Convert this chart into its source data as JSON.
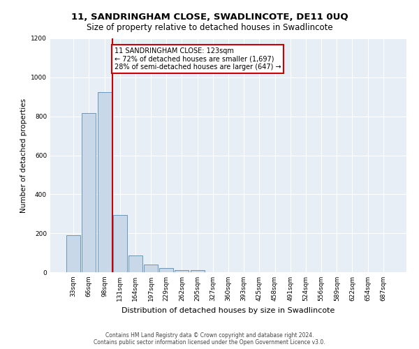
{
  "title": "11, SANDRINGHAM CLOSE, SWADLINCOTE, DE11 0UQ",
  "subtitle": "Size of property relative to detached houses in Swadlincote",
  "xlabel": "Distribution of detached houses by size in Swadlincote",
  "ylabel": "Number of detached properties",
  "bar_labels": [
    "33sqm",
    "66sqm",
    "98sqm",
    "131sqm",
    "164sqm",
    "197sqm",
    "229sqm",
    "262sqm",
    "295sqm",
    "327sqm",
    "360sqm",
    "393sqm",
    "425sqm",
    "458sqm",
    "491sqm",
    "524sqm",
    "556sqm",
    "589sqm",
    "622sqm",
    "654sqm",
    "687sqm"
  ],
  "bar_values": [
    190,
    815,
    925,
    295,
    85,
    38,
    22,
    12,
    10,
    0,
    0,
    0,
    0,
    0,
    0,
    0,
    0,
    0,
    0,
    0,
    0
  ],
  "bar_color": "#c8d8e8",
  "bar_edge_color": "#5a8ab0",
  "vline_label": "11 SANDRINGHAM CLOSE: 123sqm",
  "annotation_line1": "← 72% of detached houses are smaller (1,697)",
  "annotation_line2": "28% of semi-detached houses are larger (647) →",
  "annotation_box_color": "#ffffff",
  "annotation_box_edge_color": "#cc0000",
  "vline_color": "#cc0000",
  "ylim": [
    0,
    1200
  ],
  "yticks": [
    0,
    200,
    400,
    600,
    800,
    1000,
    1200
  ],
  "background_color": "#e8eef5",
  "footer_line1": "Contains HM Land Registry data © Crown copyright and database right 2024.",
  "footer_line2": "Contains public sector information licensed under the Open Government Licence v3.0.",
  "title_fontsize": 9.5,
  "subtitle_fontsize": 8.5,
  "tick_fontsize": 6.5,
  "ylabel_fontsize": 7.5,
  "xlabel_fontsize": 8,
  "annotation_fontsize": 7,
  "footer_fontsize": 5.5
}
